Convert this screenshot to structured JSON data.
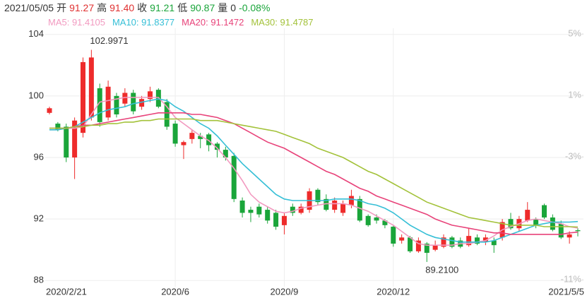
{
  "chart_data": {
    "type": "candlestick",
    "header": [
      {
        "text": "2021/05/05",
        "color": "#333333"
      },
      {
        "text": "开",
        "color": "#333333"
      },
      {
        "text": "91.27",
        "color": "#e03030"
      },
      {
        "text": "高",
        "color": "#333333"
      },
      {
        "text": "91.40",
        "color": "#e03030"
      },
      {
        "text": "收",
        "color": "#333333"
      },
      {
        "text": "91.21",
        "color": "#1aa53a"
      },
      {
        "text": "低",
        "color": "#333333"
      },
      {
        "text": "90.87",
        "color": "#1aa53a"
      },
      {
        "text": "量",
        "color": "#333333"
      },
      {
        "text": "0",
        "color": "#333333"
      },
      {
        "text": "-0.08%",
        "color": "#1aa53a"
      }
    ],
    "up_color": "#ee2b2b",
    "down_color": "#1aa53a",
    "categories": [
      "2020/2/21",
      null,
      null,
      null,
      null,
      null,
      null,
      null,
      null,
      null,
      null,
      null,
      null,
      null,
      null,
      "2020/6",
      null,
      null,
      null,
      null,
      null,
      null,
      null,
      null,
      null,
      null,
      null,
      null,
      "2020/9",
      null,
      null,
      null,
      null,
      null,
      null,
      null,
      null,
      null,
      null,
      null,
      null,
      "2020/12",
      null,
      null,
      null,
      null,
      null,
      null,
      null,
      null,
      null,
      null,
      null,
      null,
      null,
      null,
      null,
      null,
      null,
      null,
      null,
      null,
      null,
      "2021/5/5"
    ],
    "open": [
      98.9,
      98.2,
      98.0,
      96.0,
      97.6,
      98.6,
      100.5,
      98.6,
      100.0,
      99.5,
      100.2,
      99.3,
      99.8,
      100.4,
      99.6,
      98.2,
      96.8,
      97.2,
      97.4,
      97.5,
      96.9,
      96.5,
      96.1,
      93.2,
      92.6,
      92.8,
      92.6,
      92.4,
      91.6,
      92.8,
      92.4,
      92.6,
      93.9,
      93.3,
      92.6,
      92.4,
      92.9,
      93.3,
      92.2,
      92.1,
      91.9,
      91.5,
      90.6,
      90.8,
      89.9,
      90.4,
      90.0,
      90.2,
      90.8,
      90.6,
      90.3,
      90.8,
      90.5,
      90.6,
      90.8,
      92.0,
      91.4,
      91.9,
      92.0,
      92.9,
      92.1,
      91.7,
      90.8,
      91.27
    ],
    "high": [
      99.3,
      98.3,
      98.2,
      98.6,
      102.5,
      102.9971,
      100.8,
      101.0,
      100.2,
      100.5,
      100.4,
      100.0,
      100.6,
      100.5,
      99.8,
      98.4,
      97.1,
      97.8,
      97.6,
      97.6,
      97.0,
      96.7,
      96.3,
      93.4,
      92.8,
      93.0,
      92.8,
      92.6,
      92.4,
      93.0,
      93.0,
      94.0,
      94.0,
      93.6,
      93.4,
      93.2,
      93.9,
      93.5,
      92.3,
      92.3,
      92.0,
      91.6,
      91.0,
      90.9,
      90.8,
      90.5,
      90.6,
      91.0,
      90.9,
      90.8,
      91.4,
      91.0,
      91.0,
      90.8,
      92.0,
      92.4,
      92.2,
      93.1,
      92.1,
      93.0,
      92.3,
      91.9,
      91.2,
      91.4
    ],
    "low": [
      98.8,
      97.7,
      95.7,
      94.6,
      97.3,
      98.4,
      98.0,
      98.4,
      98.6,
      99.3,
      98.8,
      99.1,
      99.6,
      99.2,
      97.8,
      96.7,
      95.9,
      96.9,
      96.6,
      96.4,
      96.0,
      95.8,
      93.1,
      92.1,
      91.8,
      92.1,
      91.7,
      91.3,
      91.0,
      92.2,
      92.3,
      92.4,
      92.9,
      92.5,
      92.4,
      92.2,
      92.7,
      91.8,
      91.5,
      91.7,
      91.4,
      90.2,
      90.4,
      89.8,
      89.8,
      89.21,
      89.9,
      90.1,
      90.1,
      90.1,
      90.2,
      90.3,
      90.3,
      89.8,
      90.6,
      91.3,
      91.2,
      91.8,
      91.4,
      92.0,
      91.2,
      90.7,
      90.4,
      90.87
    ],
    "close": [
      99.2,
      97.8,
      96.0,
      98.4,
      102.2,
      102.5,
      98.3,
      100.6,
      98.8,
      100.2,
      99.0,
      99.8,
      100.3,
      99.3,
      98.0,
      96.9,
      97.0,
      97.6,
      97.2,
      96.8,
      96.5,
      96.0,
      93.3,
      92.4,
      92.4,
      92.3,
      91.9,
      91.5,
      92.2,
      92.4,
      92.8,
      93.8,
      93.1,
      92.6,
      93.2,
      93.0,
      93.5,
      91.9,
      91.6,
      91.9,
      91.6,
      90.4,
      90.8,
      89.9,
      90.6,
      89.8,
      90.3,
      90.8,
      90.2,
      90.2,
      90.9,
      90.4,
      90.8,
      90.3,
      91.8,
      91.4,
      92.0,
      92.6,
      91.6,
      92.1,
      91.3,
      90.8,
      91.0,
      91.21
    ],
    "series": [
      {
        "name": "MA5: 91.4105",
        "color": "#f29ac0",
        "values": [
          97.8,
          97.8,
          97.9,
          97.9,
          98.0,
          98.8,
          99.6,
          99.7,
          99.8,
          99.9,
          99.9,
          99.9,
          99.9,
          99.9,
          99.3,
          98.6,
          98.2,
          97.8,
          97.4,
          97.1,
          96.6,
          96.0,
          95.3,
          94.5,
          93.6,
          93.1,
          92.8,
          92.5,
          92.4,
          92.5,
          92.7,
          92.8,
          92.9,
          93.0,
          93.0,
          93.0,
          92.9,
          92.7,
          92.5,
          92.2,
          91.9,
          91.6,
          91.2,
          90.8,
          90.4,
          90.3,
          90.3,
          90.3,
          90.3,
          90.4,
          90.4,
          90.5,
          90.6,
          90.9,
          91.3,
          91.5,
          91.7,
          91.9,
          92.0,
          91.9,
          91.8,
          91.7,
          91.5,
          91.4105
        ]
      },
      {
        "name": "MA10: 91.8377",
        "color": "#35bfd6",
        "values": [
          97.8,
          97.8,
          97.9,
          98.0,
          98.3,
          98.6,
          98.9,
          99.1,
          99.2,
          99.3,
          99.5,
          99.6,
          99.7,
          99.8,
          99.7,
          99.3,
          99.0,
          98.6,
          98.2,
          97.9,
          97.4,
          96.8,
          96.2,
          95.6,
          95.1,
          94.6,
          94.1,
          93.6,
          93.3,
          93.2,
          93.2,
          93.2,
          93.2,
          93.2,
          93.3,
          93.3,
          93.3,
          93.2,
          93.0,
          92.9,
          92.7,
          92.4,
          92.0,
          91.6,
          91.3,
          91.0,
          90.8,
          90.7,
          90.6,
          90.5,
          90.5,
          90.5,
          90.5,
          90.6,
          90.8,
          91.0,
          91.2,
          91.4,
          91.6,
          91.7,
          91.8,
          91.8,
          91.8,
          91.8377
        ]
      },
      {
        "name": "MA20: 91.1472",
        "color": "#e8437a",
        "values": [
          97.9,
          97.9,
          97.9,
          98.0,
          98.1,
          98.1,
          98.2,
          98.3,
          98.4,
          98.5,
          98.6,
          98.7,
          98.8,
          98.9,
          98.9,
          98.9,
          98.9,
          98.8,
          98.8,
          98.7,
          98.6,
          98.4,
          98.2,
          97.9,
          97.6,
          97.3,
          97.0,
          96.8,
          96.6,
          96.3,
          96.0,
          95.7,
          95.4,
          95.1,
          94.9,
          94.6,
          94.3,
          94.0,
          93.8,
          93.5,
          93.3,
          93.1,
          92.9,
          92.7,
          92.5,
          92.3,
          92.0,
          91.8,
          91.6,
          91.5,
          91.4,
          91.3,
          91.2,
          91.1,
          91.1,
          91.0,
          91.0,
          91.0,
          91.0,
          91.0,
          91.0,
          91.0,
          91.1,
          91.1472
        ]
      },
      {
        "name": "MA30: 91.4787",
        "color": "#a3c23a",
        "values": [
          97.9,
          97.9,
          97.9,
          98.0,
          98.0,
          98.1,
          98.1,
          98.2,
          98.2,
          98.3,
          98.3,
          98.4,
          98.4,
          98.5,
          98.5,
          98.5,
          98.5,
          98.5,
          98.4,
          98.4,
          98.4,
          98.3,
          98.2,
          98.1,
          98.0,
          97.9,
          97.8,
          97.7,
          97.5,
          97.3,
          97.1,
          96.9,
          96.6,
          96.4,
          96.2,
          96.0,
          95.7,
          95.4,
          95.1,
          94.9,
          94.6,
          94.3,
          94.0,
          93.7,
          93.4,
          93.1,
          92.9,
          92.7,
          92.5,
          92.3,
          92.1,
          92.0,
          91.9,
          91.8,
          91.7,
          91.6,
          91.6,
          91.6,
          91.6,
          91.5,
          91.5,
          91.5,
          91.5,
          91.4787
        ]
      }
    ],
    "annotations": [
      {
        "value": 102.9971,
        "label": "102.9971"
      },
      {
        "value": 89.21,
        "label": "89.2100"
      }
    ],
    "ylim": [
      87.6,
      104.4
    ],
    "yticks": [
      88,
      92,
      96,
      100,
      104
    ],
    "y2lim": [
      -11.46,
      5.37
    ],
    "y2ticks": [
      {
        "value": 5,
        "label": "5%"
      },
      {
        "value": 1,
        "label": "1%"
      },
      {
        "value": -3,
        "label": "-3%"
      },
      {
        "value": -11,
        "label": "-11%"
      }
    ],
    "grid": true
  }
}
